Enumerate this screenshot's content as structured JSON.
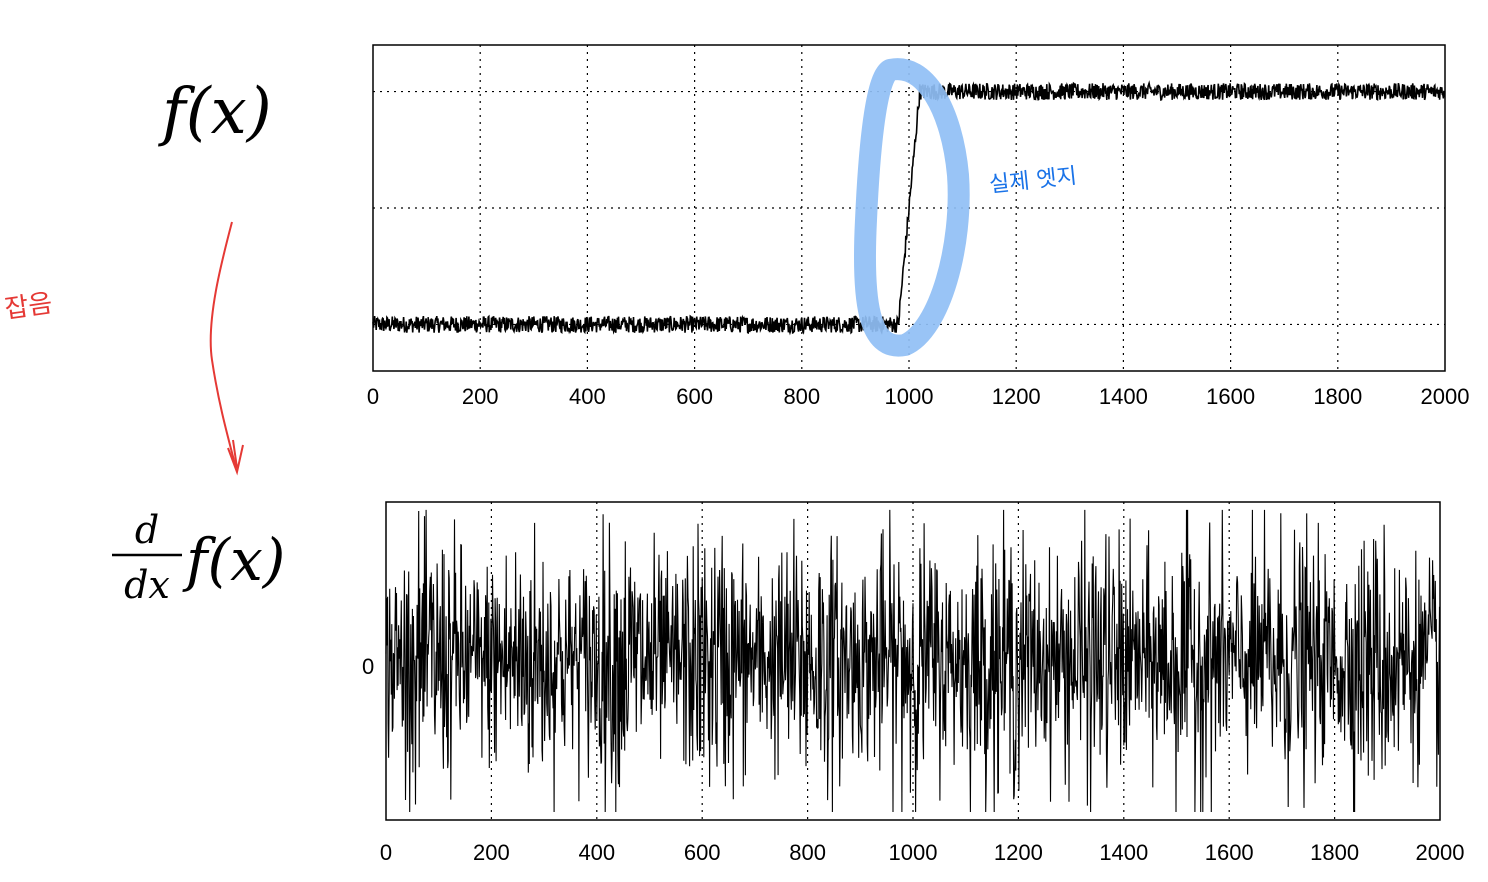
{
  "chart_data": [
    {
      "type": "line",
      "label": "f(x)",
      "xlim": [
        0,
        2000
      ],
      "ylim": [
        -0.2,
        1.2
      ],
      "x_ticks": [
        "0",
        "200",
        "400",
        "600",
        "800",
        "1000",
        "1200",
        "1400",
        "1600",
        "1800",
        "2000"
      ],
      "y_gridlines": [
        0,
        0.5,
        1
      ],
      "grid": true,
      "series": [
        {
          "name": "f(x)",
          "description": "noisy step signal",
          "low_level": 0,
          "high_level": 1,
          "step_start": 980,
          "step_end": 1020,
          "noise_amplitude": 0.06,
          "n_points": 2000
        }
      ]
    },
    {
      "type": "line",
      "label": "d/dx f(x)",
      "xlim": [
        0,
        2000
      ],
      "ylim": [
        -1,
        1
      ],
      "x_ticks": [
        "0",
        "200",
        "400",
        "600",
        "800",
        "1000",
        "1200",
        "1400",
        "1600",
        "1800",
        "2000"
      ],
      "y_ticks": [
        "0"
      ],
      "grid": true,
      "series": [
        {
          "name": "d/dx f(x)",
          "description": "derivative of noisy signal, dominated by noise",
          "n_points": 2000,
          "noise_amplitude": 0.85
        }
      ]
    }
  ],
  "labels": {
    "top": "f(x)",
    "bottom_num": "d",
    "bottom_den": "dx",
    "bottom_fx": "f(x)"
  },
  "annotations": {
    "edge_note": "실제 엣지",
    "noise_note": "잡음"
  },
  "colors": {
    "signal": "#000000",
    "highlight": "#90bff5",
    "blue_ink": "#1a73e8",
    "red_ink": "#e53935"
  }
}
